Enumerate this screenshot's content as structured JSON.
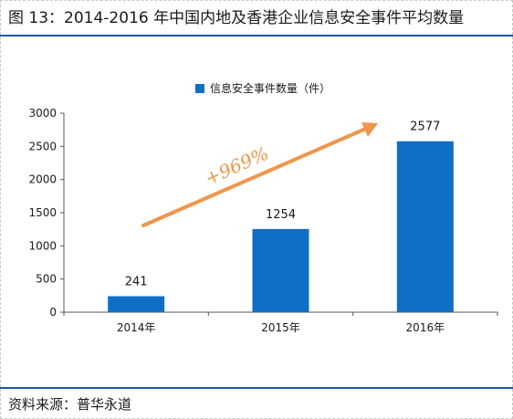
{
  "figure": {
    "title": "图 13：2014-2016 年中国内地及香港企业信息安全事件平均数量",
    "source": "资料来源：普华永道"
  },
  "chart_data": {
    "type": "bar",
    "categories": [
      "2014年",
      "2015年",
      "2016年"
    ],
    "series": [
      {
        "name": "信息安全事件数量（件）",
        "values": [
          241,
          1254,
          2577
        ],
        "color": "#0f6fc6"
      }
    ],
    "data_labels": [
      "241",
      "1254",
      "2577"
    ],
    "ylim": [
      0,
      3000
    ],
    "yticks": [
      0,
      500,
      1000,
      1500,
      2000,
      2500,
      3000
    ],
    "grid": false,
    "legend_position": "top-center",
    "annotation": {
      "text": "+969%",
      "color": "#f0964a"
    }
  }
}
